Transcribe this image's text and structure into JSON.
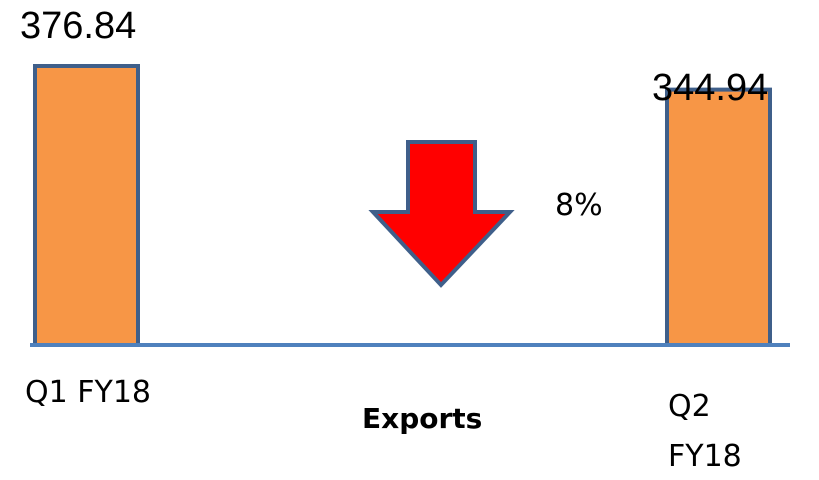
{
  "chart_data": {
    "type": "bar",
    "categories": [
      "Q1 FY18",
      "Q2 FY18"
    ],
    "values": [
      376.84,
      344.94
    ],
    "value_labels": [
      "376.84",
      "344.94"
    ],
    "xlabel": "Exports",
    "ylim": [
      0,
      376.84
    ],
    "change_label": "8%",
    "change_direction": "down",
    "grid": false
  },
  "colors": {
    "bar_fill": "#F79646",
    "bar_stroke": "#3F5F8A",
    "baseline": "#4F81BD",
    "arrow_fill": "#FF0000",
    "arrow_stroke": "#3F5F8A"
  }
}
